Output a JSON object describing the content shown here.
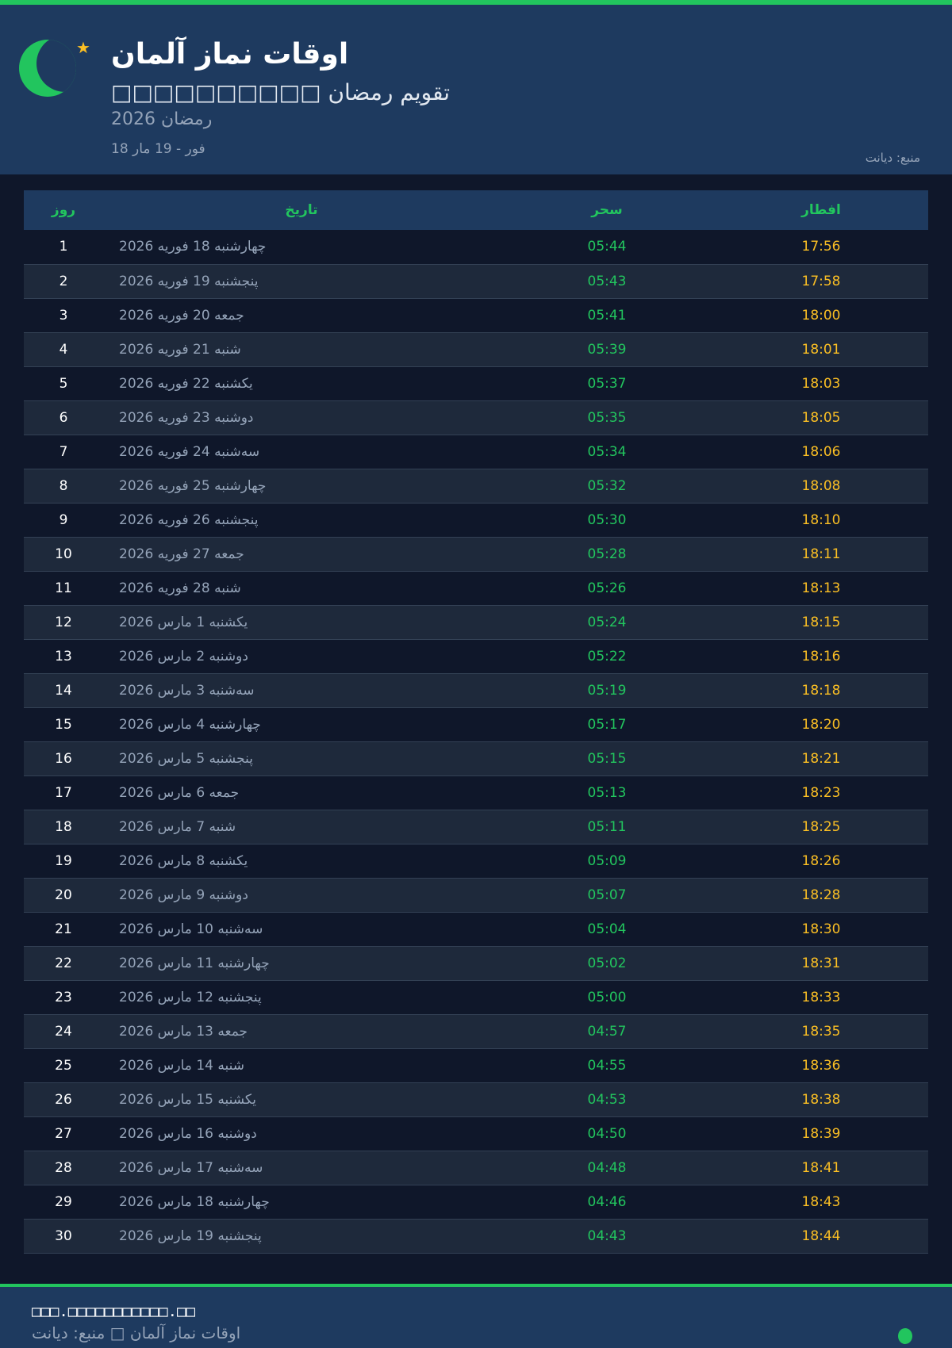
{
  "header": {
    "title": "اوقات نماز آلمان",
    "subtitle": "□□□□□□□□□□ تقویم رمضان",
    "year": "رمضان 2026",
    "range": "18 فور - 19 مار",
    "source": "منبع: دیانت",
    "star_icon": "★"
  },
  "colors": {
    "accent": "#22c55e",
    "iftar": "#fbbf24",
    "header_bg": "#1e3a5f",
    "page_bg": "#0f172a"
  },
  "table": {
    "headers": {
      "day": "روز",
      "date": "تاریخ",
      "suhoor": "سحر",
      "iftar": "افطار"
    },
    "rows": [
      {
        "day": "1",
        "date": "چهارشنبه 18 فوریه 2026",
        "suhoor": "05:44",
        "iftar": "17:56"
      },
      {
        "day": "2",
        "date": "پنجشنبه 19 فوریه 2026",
        "suhoor": "05:43",
        "iftar": "17:58"
      },
      {
        "day": "3",
        "date": "جمعه 20 فوریه 2026",
        "suhoor": "05:41",
        "iftar": "18:00"
      },
      {
        "day": "4",
        "date": "شنبه 21 فوریه 2026",
        "suhoor": "05:39",
        "iftar": "18:01"
      },
      {
        "day": "5",
        "date": "یکشنبه 22 فوریه 2026",
        "suhoor": "05:37",
        "iftar": "18:03"
      },
      {
        "day": "6",
        "date": "دوشنبه 23 فوریه 2026",
        "suhoor": "05:35",
        "iftar": "18:05"
      },
      {
        "day": "7",
        "date": "سه‌شنبه 24 فوریه 2026",
        "suhoor": "05:34",
        "iftar": "18:06"
      },
      {
        "day": "8",
        "date": "چهارشنبه 25 فوریه 2026",
        "suhoor": "05:32",
        "iftar": "18:08"
      },
      {
        "day": "9",
        "date": "پنجشنبه 26 فوریه 2026",
        "suhoor": "05:30",
        "iftar": "18:10"
      },
      {
        "day": "10",
        "date": "جمعه 27 فوریه 2026",
        "suhoor": "05:28",
        "iftar": "18:11"
      },
      {
        "day": "11",
        "date": "شنبه 28 فوریه 2026",
        "suhoor": "05:26",
        "iftar": "18:13"
      },
      {
        "day": "12",
        "date": "یکشنبه 1 مارس 2026",
        "suhoor": "05:24",
        "iftar": "18:15"
      },
      {
        "day": "13",
        "date": "دوشنبه 2 مارس 2026",
        "suhoor": "05:22",
        "iftar": "18:16"
      },
      {
        "day": "14",
        "date": "سه‌شنبه 3 مارس 2026",
        "suhoor": "05:19",
        "iftar": "18:18"
      },
      {
        "day": "15",
        "date": "چهارشنبه 4 مارس 2026",
        "suhoor": "05:17",
        "iftar": "18:20"
      },
      {
        "day": "16",
        "date": "پنجشنبه 5 مارس 2026",
        "suhoor": "05:15",
        "iftar": "18:21"
      },
      {
        "day": "17",
        "date": "جمعه 6 مارس 2026",
        "suhoor": "05:13",
        "iftar": "18:23"
      },
      {
        "day": "18",
        "date": "شنبه 7 مارس 2026",
        "suhoor": "05:11",
        "iftar": "18:25"
      },
      {
        "day": "19",
        "date": "یکشنبه 8 مارس 2026",
        "suhoor": "05:09",
        "iftar": "18:26"
      },
      {
        "day": "20",
        "date": "دوشنبه 9 مارس 2026",
        "suhoor": "05:07",
        "iftar": "18:28"
      },
      {
        "day": "21",
        "date": "سه‌شنبه 10 مارس 2026",
        "suhoor": "05:04",
        "iftar": "18:30"
      },
      {
        "day": "22",
        "date": "چهارشنبه 11 مارس 2026",
        "suhoor": "05:02",
        "iftar": "18:31"
      },
      {
        "day": "23",
        "date": "پنجشنبه 12 مارس 2026",
        "suhoor": "05:00",
        "iftar": "18:33"
      },
      {
        "day": "24",
        "date": "جمعه 13 مارس 2026",
        "suhoor": "04:57",
        "iftar": "18:35"
      },
      {
        "day": "25",
        "date": "شنبه 14 مارس 2026",
        "suhoor": "04:55",
        "iftar": "18:36"
      },
      {
        "day": "26",
        "date": "یکشنبه 15 مارس 2026",
        "suhoor": "04:53",
        "iftar": "18:38"
      },
      {
        "day": "27",
        "date": "دوشنبه 16 مارس 2026",
        "suhoor": "04:50",
        "iftar": "18:39"
      },
      {
        "day": "28",
        "date": "سه‌شنبه 17 مارس 2026",
        "suhoor": "04:48",
        "iftar": "18:41"
      },
      {
        "day": "29",
        "date": "چهارشنبه 18 مارس 2026",
        "suhoor": "04:46",
        "iftar": "18:43"
      },
      {
        "day": "30",
        "date": "پنجشنبه 19 مارس 2026",
        "suhoor": "04:43",
        "iftar": "18:44"
      }
    ]
  },
  "footer": {
    "url": "□□□.□□□□□□□□□□□.□□",
    "text": "اوقات نماز آلمان □ منبع: دیانت"
  }
}
